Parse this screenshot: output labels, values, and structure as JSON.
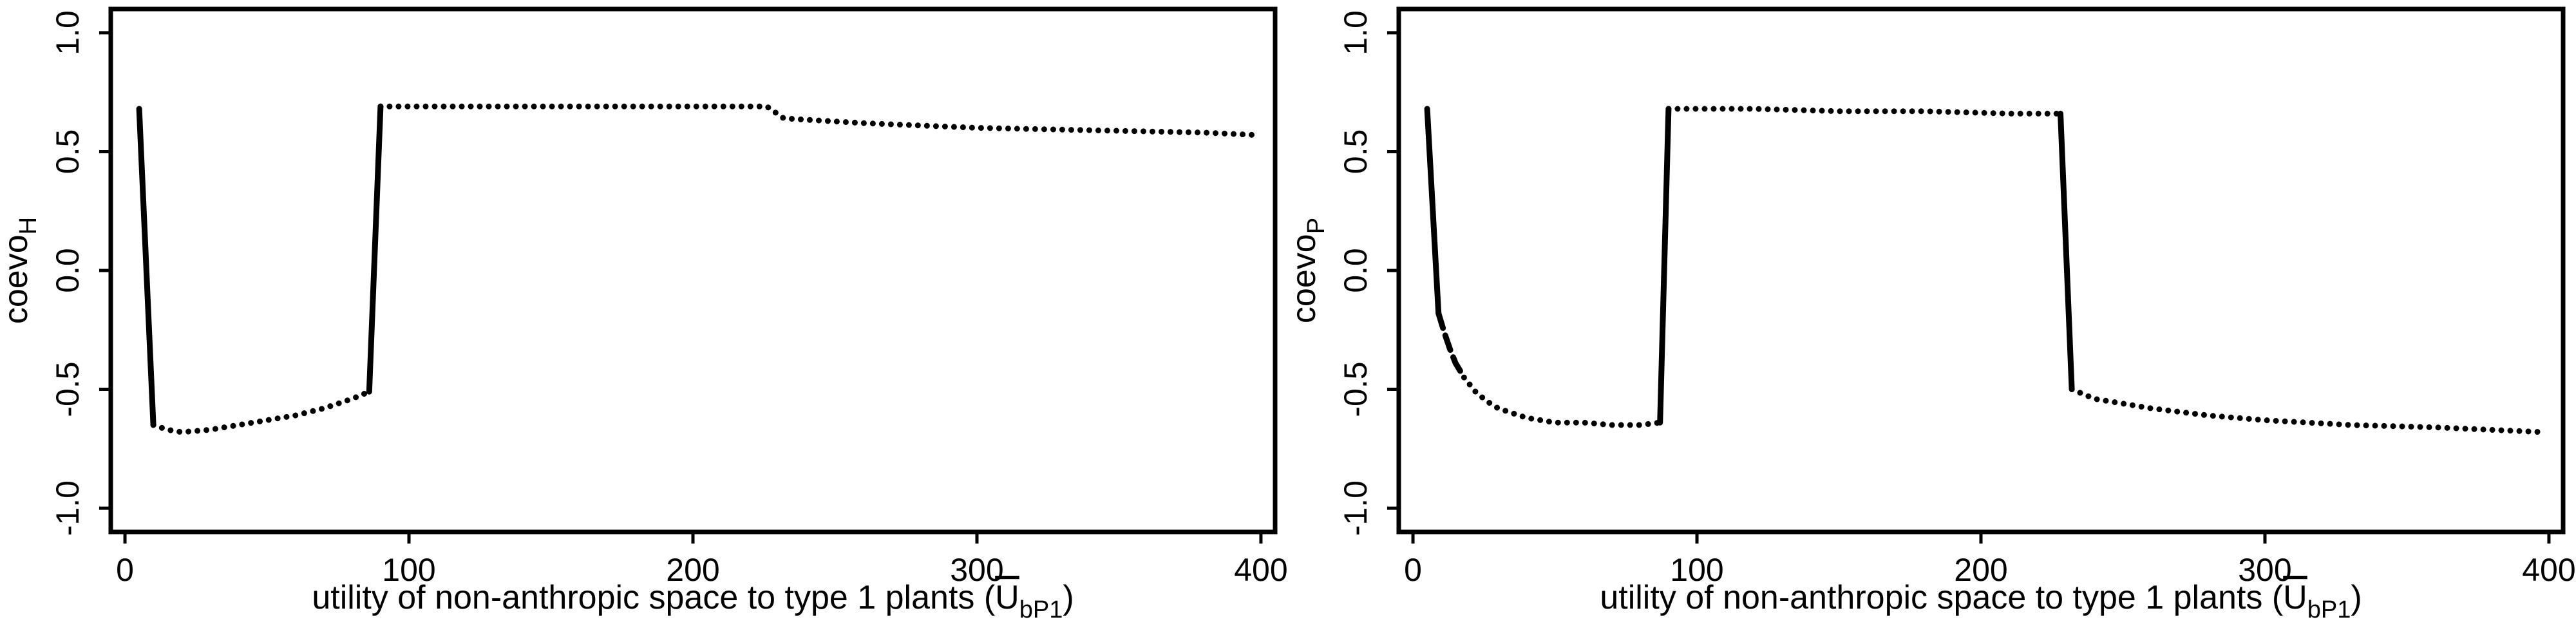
{
  "chart_data": [
    {
      "type": "line",
      "ylabel": {
        "base": "coevo",
        "sub": "H"
      },
      "xlabel": {
        "prefix": "utility of non-anthropic space to type 1 plants (",
        "sym": "U",
        "sub": "bP1",
        "suffix": ")"
      },
      "xlim": [
        -5,
        405
      ],
      "ylim": [
        -1.1,
        1.1
      ],
      "x_ticks": [
        0,
        100,
        200,
        300,
        400
      ],
      "x_tick_labels": [
        "0",
        "100",
        "200",
        "300",
        "400"
      ],
      "y_ticks": [
        -1.0,
        -0.5,
        0.0,
        0.5,
        1.0
      ],
      "y_tick_labels": [
        "-1.0",
        "-0.5",
        "0.0",
        "0.5",
        "1.0"
      ],
      "series": [
        {
          "style": "solid",
          "x": [
            5,
            10
          ],
          "y": [
            0.68,
            -0.65
          ]
        },
        {
          "style": "dotted",
          "x": [
            10,
            15,
            20,
            30,
            40,
            50,
            60,
            70,
            80,
            86
          ],
          "y": [
            -0.65,
            -0.67,
            -0.68,
            -0.67,
            -0.65,
            -0.63,
            -0.61,
            -0.58,
            -0.54,
            -0.51
          ]
        },
        {
          "style": "solid",
          "x": [
            86,
            90
          ],
          "y": [
            -0.51,
            0.69
          ]
        },
        {
          "style": "dotted",
          "x": [
            90,
            120,
            150,
            180,
            210,
            226,
            232,
            260,
            300,
            340,
            380,
            398
          ],
          "y": [
            0.69,
            0.69,
            0.69,
            0.69,
            0.69,
            0.69,
            0.64,
            0.62,
            0.6,
            0.59,
            0.58,
            0.57
          ]
        }
      ]
    },
    {
      "type": "line",
      "ylabel": {
        "base": "coevo",
        "sub": "P"
      },
      "xlabel": {
        "prefix": "utility of non-anthropic space to type 1 plants (",
        "sym": "U",
        "sub": "bP1",
        "suffix": ")"
      },
      "xlim": [
        -5,
        405
      ],
      "ylim": [
        -1.1,
        1.1
      ],
      "x_ticks": [
        0,
        100,
        200,
        300,
        400
      ],
      "x_tick_labels": [
        "0",
        "100",
        "200",
        "300",
        "400"
      ],
      "y_ticks": [
        -1.0,
        -0.5,
        0.0,
        0.5,
        1.0
      ],
      "y_tick_labels": [
        "-1.0",
        "-0.5",
        "0.0",
        "0.5",
        "1.0"
      ],
      "series": [
        {
          "style": "solid",
          "x": [
            5,
            9
          ],
          "y": [
            0.68,
            -0.18
          ]
        },
        {
          "style": "dashed",
          "x": [
            9,
            11,
            13,
            15,
            18
          ],
          "y": [
            -0.18,
            -0.26,
            -0.33,
            -0.39,
            -0.45
          ]
        },
        {
          "style": "dotted",
          "x": [
            18,
            22,
            26,
            30,
            35,
            40,
            50,
            60,
            70,
            80,
            87
          ],
          "y": [
            -0.45,
            -0.51,
            -0.55,
            -0.58,
            -0.6,
            -0.62,
            -0.64,
            -0.64,
            -0.65,
            -0.65,
            -0.64
          ]
        },
        {
          "style": "solid",
          "x": [
            87,
            90
          ],
          "y": [
            -0.64,
            0.68
          ]
        },
        {
          "style": "dotted",
          "x": [
            90,
            120,
            150,
            180,
            210,
            228
          ],
          "y": [
            0.68,
            0.68,
            0.67,
            0.67,
            0.66,
            0.66
          ]
        },
        {
          "style": "solid",
          "x": [
            228,
            232
          ],
          "y": [
            0.66,
            -0.5
          ]
        },
        {
          "style": "dotted",
          "x": [
            232,
            240,
            260,
            280,
            300,
            330,
            360,
            398
          ],
          "y": [
            -0.5,
            -0.54,
            -0.58,
            -0.61,
            -0.63,
            -0.65,
            -0.66,
            -0.68
          ]
        }
      ]
    }
  ]
}
